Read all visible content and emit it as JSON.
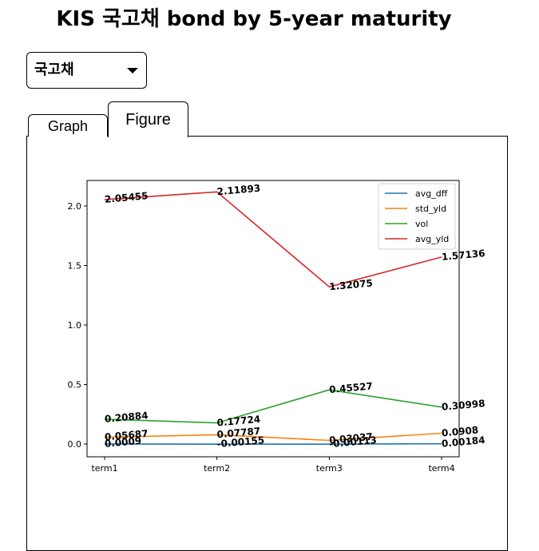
{
  "page": {
    "title": "KIS 국고채 bond by 5-year maturity"
  },
  "dropdown": {
    "selected": "국고채",
    "icon": "caret-down-icon"
  },
  "tabs": [
    {
      "label": "Graph",
      "active": false
    },
    {
      "label": "Figure",
      "active": true
    }
  ],
  "chart_data": {
    "type": "line",
    "categories": [
      "term1",
      "term2",
      "term3",
      "term4"
    ],
    "ylim": [
      -0.1,
      2.25
    ],
    "yticks": [
      0.0,
      0.5,
      1.0,
      1.5,
      2.0
    ],
    "ytick_labels": [
      "0.0",
      "0.5",
      "1.0",
      "1.5",
      "2.0"
    ],
    "legend_position": "top-right",
    "grid": false,
    "series": [
      {
        "name": "avg_dff",
        "color": "#1f77b4",
        "values": [
          0.0009,
          -0.00155,
          -0.00113,
          0.00184
        ],
        "labels": [
          "0.0009",
          "-0.00155",
          "-0.00113",
          "0.00184"
        ]
      },
      {
        "name": "std_yld",
        "color": "#ff7f0e",
        "values": [
          0.05687,
          0.07787,
          0.03037,
          0.0908
        ],
        "labels": [
          "0.05687",
          "0.07787",
          "0.03037",
          "0.0908"
        ]
      },
      {
        "name": "vol",
        "color": "#2ca02c",
        "values": [
          0.20884,
          0.17724,
          0.45527,
          0.30998
        ],
        "labels": [
          "0.20884",
          "0.17724",
          "0.45527",
          "0.30998"
        ]
      },
      {
        "name": "avg_yld",
        "color": "#d62728",
        "values": [
          2.05455,
          2.11893,
          1.32075,
          1.57136
        ],
        "labels": [
          "2.05455",
          "2.11893",
          "1.32075",
          "1.57136"
        ]
      }
    ]
  }
}
